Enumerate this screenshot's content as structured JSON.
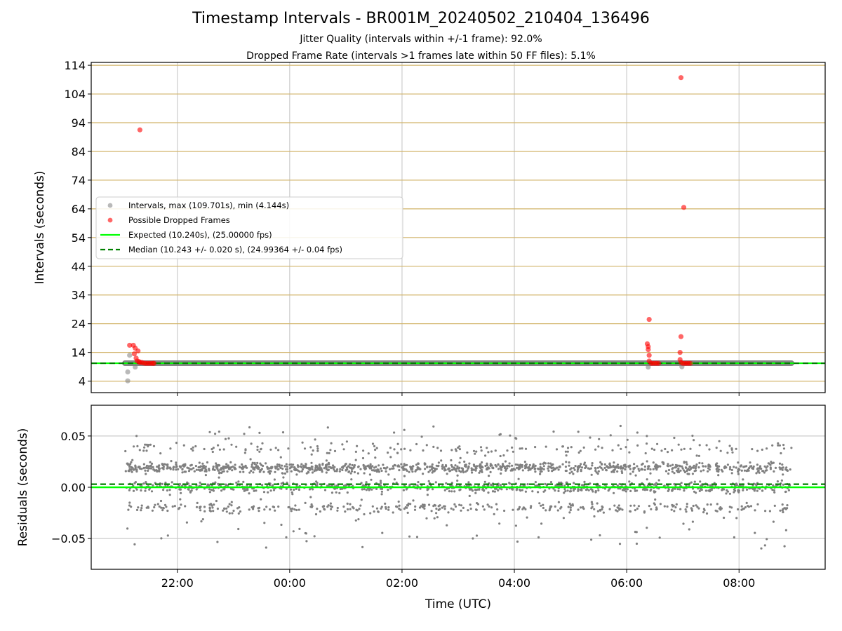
{
  "figure": {
    "title": "Timestamp Intervals - BR001M_20240502_210404_136496",
    "subtitle_1": "Jitter Quality (intervals within +/-1 frame): 92.0%",
    "subtitle_2": "Dropped Frame Rate (intervals >1 frames late within 50 FF files): 5.1%"
  },
  "colors": {
    "intervals": "#808080",
    "dropped": "#ff0000",
    "expected": "#00ff00",
    "median": "#008000",
    "hgrid_top": "#d2b46a",
    "grid": "#cccccc"
  },
  "chart_data": [
    {
      "type": "scatter",
      "title": "",
      "xlabel": "",
      "ylabel": "Intervals (seconds)",
      "x_ticks": [
        "22:00",
        "00:00",
        "02:00",
        "04:00",
        "06:00",
        "08:00"
      ],
      "x_range": [
        "2024-05-02 20:28",
        "2024-05-03 09:32"
      ],
      "ylim": [
        0,
        115
      ],
      "y_ticks": [
        4,
        14,
        24,
        34,
        44,
        54,
        64,
        74,
        84,
        94,
        104,
        114
      ],
      "grid": true,
      "legend_position": "center-left",
      "series": [
        {
          "name": "Intervals, max (109.701s), min (4.144s)",
          "style": "band",
          "x_start": "2024-05-02 21:04",
          "x_end": "2024-05-03 08:56",
          "y": 10.24,
          "extra_points": [
            {
              "x": "2024-05-02 21:07",
              "y": 4.1
            },
            {
              "x": "2024-05-02 21:07",
              "y": 7.2
            },
            {
              "x": "2024-05-02 21:09",
              "y": 13.0
            },
            {
              "x": "2024-05-02 21:15",
              "y": 8.9
            },
            {
              "x": "2024-05-03 06:23",
              "y": 8.9
            },
            {
              "x": "2024-05-03 06:59",
              "y": 9.0
            }
          ]
        },
        {
          "name": "Possible Dropped Frames",
          "style": "points",
          "points": [
            {
              "x": "2024-05-02 21:09",
              "y": 16.5
            },
            {
              "x": "2024-05-02 21:13",
              "y": 16.5
            },
            {
              "x": "2024-05-02 21:14",
              "y": 13.5
            },
            {
              "x": "2024-05-02 21:15",
              "y": 15.5
            },
            {
              "x": "2024-05-02 21:16",
              "y": 12.0
            },
            {
              "x": "2024-05-02 21:17",
              "y": 11.0
            },
            {
              "x": "2024-05-02 21:18",
              "y": 14.5
            },
            {
              "x": "2024-05-02 21:19",
              "y": 10.8
            },
            {
              "x": "2024-05-02 21:20",
              "y": 10.5
            },
            {
              "x": "2024-05-02 21:22",
              "y": 10.5
            },
            {
              "x": "2024-05-02 21:24",
              "y": 10.3
            },
            {
              "x": "2024-05-02 21:26",
              "y": 10.2
            },
            {
              "x": "2024-05-02 21:28",
              "y": 10.2
            },
            {
              "x": "2024-05-02 21:30",
              "y": 10.2
            },
            {
              "x": "2024-05-02 21:32",
              "y": 10.2
            },
            {
              "x": "2024-05-02 21:34",
              "y": 10.2
            },
            {
              "x": "2024-05-02 21:35",
              "y": 10.2
            },
            {
              "x": "2024-05-02 21:20",
              "y": 91.5
            },
            {
              "x": "2024-05-03 06:22",
              "y": 17.0
            },
            {
              "x": "2024-05-03 06:23",
              "y": 15.0
            },
            {
              "x": "2024-05-03 06:23",
              "y": 16.0
            },
            {
              "x": "2024-05-03 06:24",
              "y": 13.0
            },
            {
              "x": "2024-05-03 06:24",
              "y": 25.5
            },
            {
              "x": "2024-05-03 06:24",
              "y": 11.0
            },
            {
              "x": "2024-05-03 06:26",
              "y": 10.2
            },
            {
              "x": "2024-05-03 06:28",
              "y": 10.2
            },
            {
              "x": "2024-05-03 06:30",
              "y": 10.2
            },
            {
              "x": "2024-05-03 06:32",
              "y": 10.2
            },
            {
              "x": "2024-05-03 06:34",
              "y": 10.2
            },
            {
              "x": "2024-05-03 06:57",
              "y": 14.0
            },
            {
              "x": "2024-05-03 06:58",
              "y": 19.5
            },
            {
              "x": "2024-05-03 06:57",
              "y": 11.5
            },
            {
              "x": "2024-05-03 06:58",
              "y": 10.5
            },
            {
              "x": "2024-05-03 06:58",
              "y": 109.7
            },
            {
              "x": "2024-05-03 07:01",
              "y": 64.5
            },
            {
              "x": "2024-05-03 07:00",
              "y": 10.2
            },
            {
              "x": "2024-05-03 07:02",
              "y": 10.2
            },
            {
              "x": "2024-05-03 07:04",
              "y": 10.2
            },
            {
              "x": "2024-05-03 07:06",
              "y": 10.2
            },
            {
              "x": "2024-05-03 07:08",
              "y": 10.2
            }
          ]
        },
        {
          "name": "Expected (10.240s), (25.00000 fps)",
          "style": "solid-line",
          "y": 10.24
        },
        {
          "name": "Median (10.243 +/- 0.020 s), (24.99364 +/- 0.04 fps)",
          "style": "dashed-line",
          "y": 10.243
        }
      ]
    },
    {
      "type": "scatter",
      "title": "",
      "xlabel": "Time (UTC)",
      "ylabel": "Residuals (seconds)",
      "x_ticks": [
        "22:00",
        "00:00",
        "02:00",
        "04:00",
        "06:00",
        "08:00"
      ],
      "x_range": [
        "2024-05-02 20:28",
        "2024-05-03 09:32"
      ],
      "ylim": [
        -0.08,
        0.08
      ],
      "y_ticks": [
        "0.05",
        "0.00",
        "−0.05"
      ],
      "y_tick_values": [
        0.05,
        0.0,
        -0.05
      ],
      "grid": true,
      "series": [
        {
          "name": "",
          "style": "residual-cloud",
          "x_start": "2024-05-02 21:04",
          "x_end": "2024-05-03 08:56",
          "bands": [
            {
              "y": 0.019,
              "spread": 0.0025,
              "share": 0.42
            },
            {
              "y": 0.0,
              "spread": 0.0025,
              "share": 0.3
            },
            {
              "y": -0.02,
              "spread": 0.0025,
              "share": 0.13
            },
            {
              "y": 0.038,
              "spread": 0.0025,
              "share": 0.06
            },
            {
              "y": 0.0,
              "spread": 0.06,
              "share": 0.09
            }
          ],
          "approx_points": 2400
        },
        {
          "name": "Expected",
          "style": "solid-line",
          "y": 0.0
        },
        {
          "name": "Median",
          "style": "dashed-line",
          "y": 0.003
        }
      ]
    }
  ]
}
